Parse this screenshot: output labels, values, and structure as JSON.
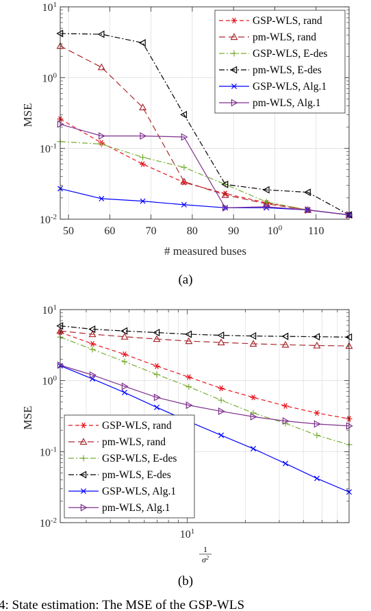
{
  "chart_data": [
    {
      "type": "line",
      "panel_label": "(a)",
      "xlabel": "# measured buses",
      "ylabel": "MSE",
      "xscale": "linear",
      "yscale": "log",
      "xlim": [
        48,
        118
      ],
      "ylim": [
        0.01,
        10
      ],
      "xticks": [
        50,
        60,
        70,
        80,
        90,
        100,
        110
      ],
      "xtick_labels": [
        "50",
        "60",
        "70",
        "80",
        "90",
        "100",
        "110"
      ],
      "ytick_labels": [
        "10-2",
        "10-1",
        "100",
        "101"
      ],
      "grid": true,
      "legend_position": "top-right",
      "x": [
        48,
        58,
        68,
        78,
        88,
        98,
        108,
        118
      ],
      "series": [
        {
          "name": "GSP-WLS, rand",
          "color": "#e8141c",
          "dash": "6,4",
          "marker": "star",
          "values": [
            0.26,
            0.12,
            0.06,
            0.033,
            0.023,
            0.017,
            0.0135,
            0.0115
          ]
        },
        {
          "name": "pm-WLS, rand",
          "color": "#a8282e",
          "dash": "9,5",
          "marker": "triangle-up",
          "values": [
            2.8,
            1.4,
            0.38,
            0.034,
            0.022,
            0.0165,
            0.0135,
            0.0115
          ]
        },
        {
          "name": "GSP-WLS, E-des",
          "color": "#77ac30",
          "dash": "8,3,2,3",
          "marker": "plus",
          "values": [
            0.125,
            0.115,
            0.075,
            0.054,
            0.031,
            0.0175,
            0.0135,
            0.0115
          ]
        },
        {
          "name": "pm-WLS, E-des",
          "color": "#000000",
          "dash": "8,3,2,3",
          "marker": "triangle-left",
          "values": [
            4.2,
            4.1,
            3.1,
            0.3,
            0.031,
            0.026,
            0.024,
            0.0115
          ]
        },
        {
          "name": "GSP-WLS, Alg.1",
          "color": "#0000ff",
          "dash": "",
          "marker": "x",
          "values": [
            0.027,
            0.0195,
            0.018,
            0.016,
            0.0145,
            0.0145,
            0.0135,
            0.0115
          ]
        },
        {
          "name": "pm-WLS, Alg.1",
          "color": "#7e2f8e",
          "dash": "",
          "marker": "triangle-right",
          "values": [
            0.22,
            0.15,
            0.15,
            0.145,
            0.0145,
            0.015,
            0.0135,
            0.0115
          ]
        }
      ]
    },
    {
      "type": "line",
      "panel_label": "(b)",
      "xlabel": "1/σ²",
      "ylabel": "MSE",
      "xscale": "log",
      "yscale": "log",
      "xlim": [
        2.2,
        69
      ],
      "ylim": [
        0.01,
        10
      ],
      "xticks": [
        10
      ],
      "xtick_labels": [
        "101"
      ],
      "ytick_labels": [
        "10-2",
        "10-1",
        "100",
        "101"
      ],
      "grid": true,
      "legend_position": "bottom-left",
      "x": [
        2.2,
        3.23,
        4.74,
        6.96,
        10.2,
        15.0,
        22.0,
        32.3,
        47.0,
        69.0
      ],
      "series": [
        {
          "name": "GSP-WLS, rand",
          "color": "#e8141c",
          "dash": "6,4",
          "marker": "star",
          "values": [
            4.8,
            3.3,
            2.35,
            1.6,
            1.12,
            0.78,
            0.58,
            0.44,
            0.35,
            0.29
          ]
        },
        {
          "name": "pm-WLS, rand",
          "color": "#a8282e",
          "dash": "9,5",
          "marker": "triangle-up",
          "values": [
            5.0,
            4.5,
            4.15,
            3.85,
            3.6,
            3.45,
            3.3,
            3.2,
            3.12,
            3.08
          ]
        },
        {
          "name": "GSP-WLS, E-des",
          "color": "#77ac30",
          "dash": "8,3,2,3",
          "marker": "plus",
          "values": [
            4.1,
            2.75,
            1.85,
            1.22,
            0.82,
            0.53,
            0.35,
            0.25,
            0.17,
            0.125
          ]
        },
        {
          "name": "pm-WLS, E-des",
          "color": "#000000",
          "dash": "8,3,2,3",
          "marker": "triangle-left",
          "values": [
            5.9,
            5.3,
            5.0,
            4.75,
            4.5,
            4.35,
            4.25,
            4.2,
            4.15,
            4.1
          ]
        },
        {
          "name": "GSP-WLS, Alg.1",
          "color": "#0000ff",
          "dash": "",
          "marker": "x",
          "values": [
            1.62,
            1.06,
            0.68,
            0.42,
            0.265,
            0.17,
            0.11,
            0.068,
            0.042,
            0.027
          ]
        },
        {
          "name": "pm-WLS, Alg.1",
          "color": "#7e2f8e",
          "dash": "",
          "marker": "triangle-right",
          "values": [
            1.65,
            1.2,
            0.83,
            0.58,
            0.45,
            0.37,
            0.31,
            0.27,
            0.245,
            0.23
          ]
        }
      ]
    }
  ],
  "caption_fragment": "4: State estimation: The MSE of the GSP-WLS"
}
